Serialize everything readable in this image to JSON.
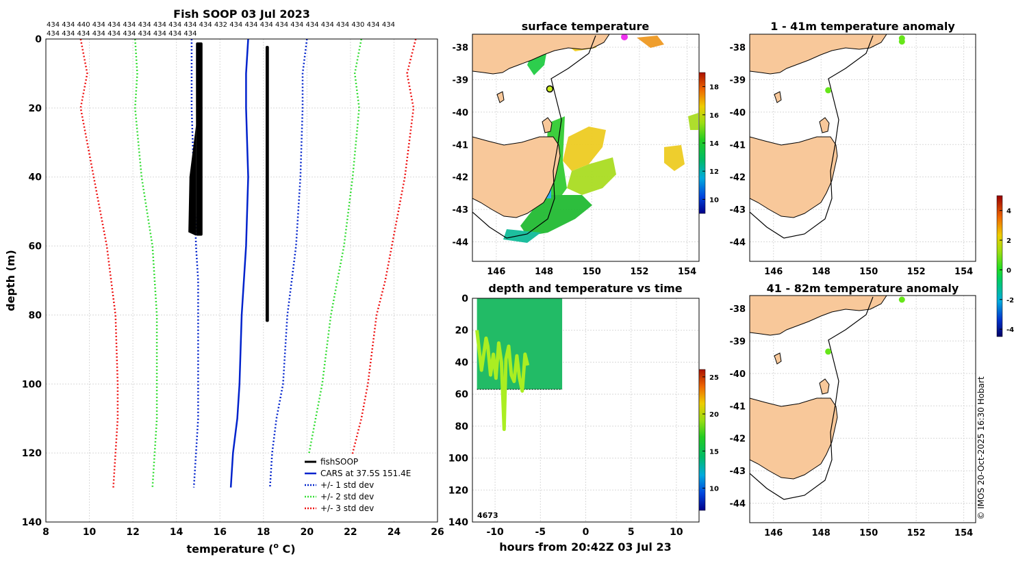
{
  "colors": {
    "fishsoop": "#000000",
    "cars": "#0022cc",
    "std1": "#0022cc",
    "std2": "#33dd33",
    "std3": "#ee1111",
    "land": "#f8c89a",
    "anomaly_point": "#66e619",
    "copyright": "#000000"
  },
  "chart_data": [
    {
      "type": "line",
      "panel": "profile",
      "title": "Fish SOOP 03 Jul 2023",
      "xlabel": "temperature (",
      "xlabel_sup": "o",
      "xlabel_unit": " C)",
      "ylabel": "depth (m)",
      "xlim": [
        8,
        26
      ],
      "ylim": [
        140,
        0
      ],
      "xticks": [
        "8",
        "10",
        "12",
        "14",
        "16",
        "18",
        "20",
        "22",
        "24",
        "26"
      ],
      "yticks": [
        "0",
        "20",
        "40",
        "60",
        "80",
        "100",
        "120",
        "140"
      ],
      "top_counts_row1": "434 434 440 434 434 434 434 434 434 434 434 432 434 434 434 434 434 434 434 434 430 434 434",
      "top_counts_row2": "434 434 434 434 434 434 434 434 434 434",
      "legend": [
        {
          "label": "fishSOOP",
          "style": "solid-thick",
          "color_key": "fishsoop"
        },
        {
          "label": "CARS at 37.5S 151.4E",
          "style": "solid",
          "color_key": "cars"
        },
        {
          "label": "+/- 1 std dev",
          "style": "dotted",
          "color_key": "std1"
        },
        {
          "label": "+/- 2 std dev",
          "style": "dotted",
          "color_key": "std2"
        },
        {
          "label": "+/- 3 std dev",
          "style": "dotted",
          "color_key": "std3"
        }
      ],
      "series": [
        {
          "name": "CARS",
          "color_key": "cars",
          "dash": "",
          "x": [
            17.3,
            17.2,
            17.2,
            17.3,
            17.2,
            17.1,
            17.0,
            16.9,
            16.8,
            16.6,
            16.5
          ],
          "y": [
            0,
            10,
            20,
            40,
            60,
            70,
            80,
            100,
            110,
            120,
            130
          ]
        },
        {
          "name": "+1 std",
          "color_key": "std1",
          "dash": "2,3",
          "x": [
            20.0,
            19.8,
            19.8,
            19.7,
            19.5,
            19.3,
            19.1,
            18.9,
            18.6,
            18.4,
            18.3
          ],
          "y": [
            0,
            10,
            20,
            40,
            60,
            70,
            80,
            100,
            110,
            120,
            130
          ]
        },
        {
          "name": "-1 std",
          "color_key": "std1",
          "dash": "2,3",
          "x": [
            14.7,
            14.7,
            14.7,
            14.8,
            14.9,
            15.0,
            15.0,
            15.0,
            15.0,
            14.9,
            14.8
          ],
          "y": [
            0,
            10,
            20,
            40,
            60,
            70,
            80,
            100,
            110,
            120,
            130
          ]
        },
        {
          "name": "+2 std",
          "color_key": "std2",
          "dash": "2,3",
          "x": [
            22.5,
            22.2,
            22.4,
            22.1,
            21.7,
            21.4,
            21.1,
            20.7,
            20.4,
            20.1,
            20.0
          ],
          "y": [
            0,
            10,
            20,
            40,
            60,
            70,
            80,
            100,
            110,
            120,
            130
          ]
        },
        {
          "name": "-2 std",
          "color_key": "std2",
          "dash": "2,3",
          "x": [
            12.1,
            12.2,
            12.1,
            12.4,
            12.9,
            13.0,
            13.1,
            13.1,
            13.1,
            13.0,
            12.9
          ],
          "y": [
            0,
            10,
            20,
            40,
            60,
            70,
            80,
            100,
            110,
            120,
            130
          ]
        },
        {
          "name": "+3 std",
          "color_key": "std3",
          "dash": "2,3",
          "x": [
            25.0,
            24.6,
            24.9,
            24.5,
            23.9,
            23.6,
            23.2,
            22.8,
            22.5,
            22.1,
            22.0
          ],
          "y": [
            0,
            10,
            20,
            40,
            60,
            70,
            80,
            100,
            110,
            120,
            130
          ]
        },
        {
          "name": "-3 std",
          "color_key": "std3",
          "dash": "2,3",
          "x": [
            9.6,
            9.9,
            9.6,
            10.2,
            10.8,
            11.0,
            11.2,
            11.3,
            11.3,
            11.2,
            11.1
          ],
          "y": [
            0,
            10,
            20,
            40,
            60,
            70,
            80,
            100,
            110,
            120,
            130
          ]
        }
      ],
      "fishsoop_bands": [
        {
          "x_min": 14.9,
          "x_max": 15.2,
          "y_min": 1,
          "y_max": 57
        },
        {
          "x_min": 18.1,
          "x_max": 18.25,
          "y_min": 2,
          "y_max": 82
        }
      ]
    },
    {
      "type": "heatmap",
      "panel": "surface",
      "title": "surface temperature",
      "xlim": [
        145,
        154.5
      ],
      "ylim": [
        -44.6,
        -37.6
      ],
      "xticks": [
        "146",
        "148",
        "150",
        "152",
        "154"
      ],
      "yticks": [
        "-38",
        "-39",
        "-40",
        "-41",
        "-42",
        "-43",
        "-44"
      ],
      "colorbar_ticks": [
        "10",
        "12",
        "14",
        "16",
        "18"
      ],
      "colorbar_range": [
        9,
        19
      ]
    },
    {
      "type": "scatter",
      "panel": "depth_time",
      "title": "depth and temperature vs time",
      "xlabel": "hours from 20:42Z 03 Jul 23",
      "xlim": [
        -12.5,
        12.5
      ],
      "ylim": [
        140,
        0
      ],
      "xticks": [
        "-10",
        "-5",
        "0",
        "5",
        "10"
      ],
      "yticks": [
        "0",
        "20",
        "40",
        "60",
        "80",
        "100",
        "120",
        "140"
      ],
      "colorbar_ticks": [
        "10",
        "15",
        "20",
        "25"
      ],
      "colorbar_range": [
        7,
        26
      ],
      "annotation": "4673",
      "block": {
        "x_min": -12.0,
        "x_max": -2.6,
        "y_min": 0,
        "y_max": 57
      },
      "trace_x": [
        -12.0,
        -11.5,
        -11.0,
        -10.8,
        -10.5,
        -10.2,
        -9.9,
        -9.6,
        -9.3,
        -9.0,
        -8.8,
        -8.5,
        -8.2,
        -7.9,
        -7.6,
        -7.3,
        -7.0,
        -6.7,
        -6.4
      ],
      "trace_y": [
        20,
        45,
        25,
        30,
        48,
        35,
        50,
        28,
        40,
        82,
        38,
        30,
        48,
        52,
        36,
        50,
        58,
        35,
        42
      ]
    },
    {
      "type": "scatter",
      "panel": "anomaly_shallow",
      "title": "1 - 41m temperature anomaly",
      "xlim": [
        145,
        154.5
      ],
      "ylim": [
        -44.6,
        -37.6
      ],
      "xticks": [
        "146",
        "148",
        "150",
        "152",
        "154"
      ],
      "yticks": [
        "-38",
        "-39",
        "-40",
        "-41",
        "-42",
        "-43",
        "-44"
      ],
      "points": [
        {
          "lon": 151.4,
          "lat": -37.6,
          "anom": 0.3
        },
        {
          "lon": 151.4,
          "lat": -37.7,
          "anom": 0.3
        },
        {
          "lon": 148.3,
          "lat": -39.2,
          "anom": 0.3
        }
      ]
    },
    {
      "type": "scatter",
      "panel": "anomaly_deep",
      "title": "41 - 82m temperature anomaly",
      "xlim": [
        145,
        154.5
      ],
      "ylim": [
        -44.6,
        -37.6
      ],
      "xticks": [
        "146",
        "148",
        "150",
        "152",
        "154"
      ],
      "yticks": [
        "-38",
        "-39",
        "-40",
        "-41",
        "-42",
        "-43",
        "-44"
      ],
      "points": [
        {
          "lon": 151.4,
          "lat": -37.6,
          "anom": 0.3
        },
        {
          "lon": 148.3,
          "lat": -39.2,
          "anom": 0.3
        }
      ]
    },
    {
      "type": "colorbar",
      "panel": "anomaly_colorbar",
      "range": [
        -4.5,
        5
      ],
      "ticks": [
        "4",
        "2",
        "0",
        "-2",
        "-4"
      ]
    }
  ],
  "copyright": "© IMOS 20-Oct-2025 16:30 Hobart"
}
